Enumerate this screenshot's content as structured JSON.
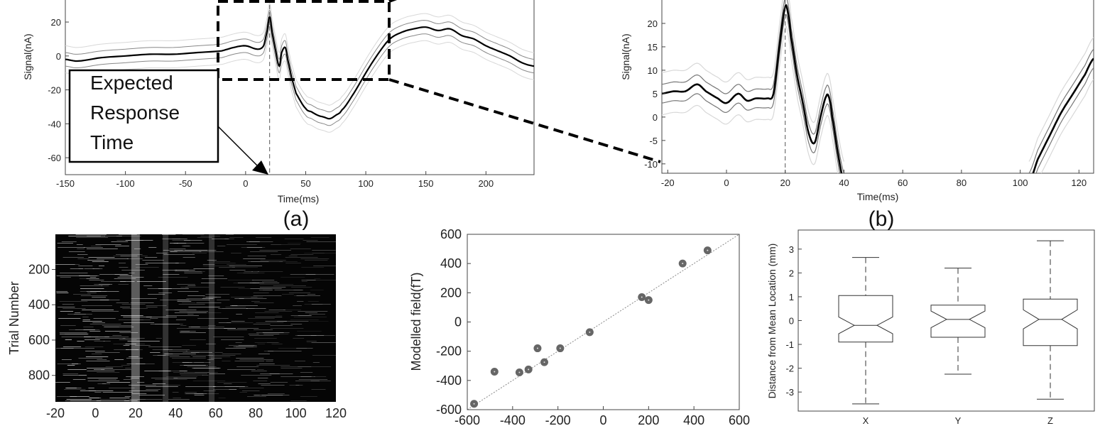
{
  "figure": {
    "label_a": "(a)",
    "label_b": "(b)",
    "annotation_lines": [
      "Expected",
      "Response",
      "Time"
    ]
  },
  "chart_data": [
    {
      "id": "panel-a",
      "type": "line",
      "xlabel": "Time(ms)",
      "ylabel": "Signal(nA)",
      "xlim": [
        -150,
        240
      ],
      "ylim": [
        -70,
        33
      ],
      "xticks": [
        -150,
        -100,
        -50,
        0,
        50,
        100,
        150,
        200
      ],
      "yticks": [
        -60,
        -40,
        -20,
        0,
        20
      ],
      "vline_x": 20,
      "grid": false,
      "mean": {
        "x": [
          -150,
          -140,
          -120,
          -100,
          -80,
          -60,
          -40,
          -20,
          -10,
          0,
          10,
          15,
          18,
          20,
          22,
          25,
          28,
          30,
          33,
          35,
          38,
          42,
          50,
          55,
          60,
          65,
          70,
          75,
          80,
          90,
          100,
          110,
          120,
          130,
          140,
          150,
          160,
          170,
          180,
          190,
          200,
          210,
          220,
          230,
          240
        ],
        "y": [
          -2,
          -3,
          -1,
          0,
          1,
          1,
          2,
          3,
          5,
          6,
          4,
          6,
          15,
          23,
          14,
          3,
          -6,
          2,
          5,
          -2,
          -12,
          -22,
          -31,
          -33,
          -35,
          -36,
          -37,
          -35,
          -32,
          -22,
          -10,
          1,
          10,
          14,
          16,
          17,
          15,
          16,
          12,
          10,
          6,
          3,
          0,
          -4,
          -6
        ]
      },
      "bands": [
        4,
        8
      ]
    },
    {
      "id": "panel-b",
      "type": "line",
      "xlabel": "Time(ms)",
      "ylabel": "Signal(nA)",
      "xlim": [
        -22,
        125
      ],
      "ylim": [
        -12,
        25
      ],
      "xticks": [
        -20,
        0,
        20,
        40,
        60,
        80,
        100,
        120
      ],
      "yticks": [
        -10,
        -5,
        0,
        5,
        10,
        15,
        20
      ],
      "vline_x": 20,
      "grid": false,
      "segments": [
        {
          "x": [
            -22,
            -18,
            -14,
            -10,
            -7,
            -3,
            0,
            4,
            7,
            10,
            14,
            16,
            18,
            20,
            21,
            22,
            24,
            26,
            28,
            30,
            32,
            34,
            35,
            36,
            38,
            40
          ],
          "y": [
            5,
            5.5,
            5.5,
            7,
            5.5,
            4,
            3,
            5,
            3.5,
            4,
            4,
            5,
            15,
            23.5,
            22,
            17,
            9,
            3,
            -3.5,
            -5.5,
            0,
            4.5,
            4,
            0,
            -8,
            -14
          ]
        },
        {
          "x": [
            103,
            106,
            110,
            114,
            118,
            122,
            125
          ],
          "y": [
            -14,
            -9,
            -4,
            1,
            5,
            9,
            12.5
          ]
        }
      ],
      "bands": [
        2,
        4.5
      ]
    },
    {
      "id": "panel-c",
      "type": "heatmap",
      "ylabel": "Trial Number",
      "xlim": [
        -20,
        120
      ],
      "ylim": [
        1,
        950
      ],
      "xticks": [
        -20,
        0,
        20,
        40,
        60,
        80,
        100,
        120
      ],
      "yticks": [
        200,
        400,
        600,
        800
      ],
      "bright_bands_x": [
        20,
        35,
        58
      ]
    },
    {
      "id": "panel-d",
      "type": "scatter",
      "ylabel": "Modelled field(fT)",
      "xlim": [
        -600,
        600
      ],
      "ylim": [
        -600,
        600
      ],
      "xticks": [
        -600,
        -400,
        -200,
        0,
        200,
        400,
        600
      ],
      "yticks": [
        -600,
        -400,
        -200,
        0,
        200,
        400,
        600
      ],
      "points": {
        "x": [
          -570,
          -480,
          -370,
          -330,
          -290,
          -260,
          -190,
          -60,
          170,
          200,
          350,
          460
        ],
        "y": [
          -560,
          -340,
          -345,
          -325,
          -180,
          -275,
          -180,
          -70,
          170,
          150,
          400,
          490
        ]
      },
      "fit_line": [
        [
          -600,
          -600
        ],
        [
          600,
          600
        ]
      ]
    },
    {
      "id": "panel-e",
      "type": "box",
      "ylabel": "Distance from Mean Location (mm)",
      "ylim": [
        -3.8,
        3.8
      ],
      "yticks": [
        -3,
        -2,
        -1,
        0,
        1,
        2,
        3
      ],
      "categories": [
        "X",
        "Y",
        "Z"
      ],
      "boxes": [
        {
          "name": "X",
          "min": -3.5,
          "q1": -0.9,
          "median": -0.2,
          "q3": 1.05,
          "max": 2.65,
          "notch_lo": -0.55,
          "notch_hi": 0.15
        },
        {
          "name": "Y",
          "min": -2.25,
          "q1": -0.7,
          "median": 0.05,
          "q3": 0.65,
          "max": 2.2,
          "notch_lo": -0.3,
          "notch_hi": 0.4
        },
        {
          "name": "Z",
          "min": -3.3,
          "q1": -1.05,
          "median": 0.05,
          "q3": 0.9,
          "max": 3.35,
          "notch_lo": -0.35,
          "notch_hi": 0.45
        }
      ]
    }
  ]
}
